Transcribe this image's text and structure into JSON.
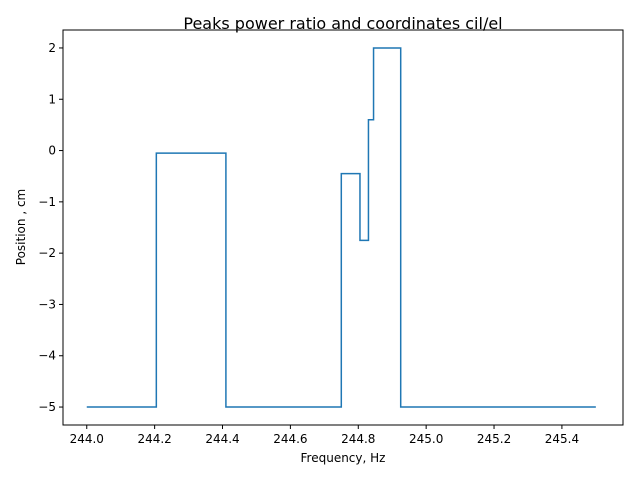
{
  "chart_data": {
    "type": "line",
    "title": "Peaks power ratio and coordinates cil/el",
    "xlabel": "Frequency, Hz",
    "ylabel": "Position , cm",
    "xlim": [
      243.93,
      245.58
    ],
    "ylim": [
      -5.35,
      2.35
    ],
    "x_ticks": [
      244.0,
      244.2,
      244.4,
      244.6,
      244.8,
      245.0,
      245.2,
      245.4
    ],
    "x_tick_labels": [
      "244.0",
      "244.2",
      "244.4",
      "244.6",
      "244.8",
      "245.0",
      "245.2",
      "245.4"
    ],
    "y_ticks": [
      2,
      1,
      0,
      -1,
      -2,
      -3,
      -4,
      -5
    ],
    "y_tick_labels": [
      "2",
      "1",
      "0",
      "−1",
      "−2",
      "−3",
      "−4",
      "−5"
    ],
    "grid": false,
    "series": [
      {
        "color": "#1f77b4",
        "points": [
          [
            244.0,
            -5.0
          ],
          [
            244.205,
            -5.0
          ],
          [
            244.205,
            -0.05
          ],
          [
            244.41,
            -0.05
          ],
          [
            244.41,
            -5.0
          ],
          [
            244.75,
            -5.0
          ],
          [
            244.75,
            -0.45
          ],
          [
            244.805,
            -0.45
          ],
          [
            244.805,
            -1.75
          ],
          [
            244.83,
            -1.75
          ],
          [
            244.83,
            0.6
          ],
          [
            244.845,
            0.6
          ],
          [
            244.845,
            2.0
          ],
          [
            244.925,
            2.0
          ],
          [
            244.925,
            -5.0
          ],
          [
            245.5,
            -5.0
          ]
        ]
      }
    ]
  }
}
